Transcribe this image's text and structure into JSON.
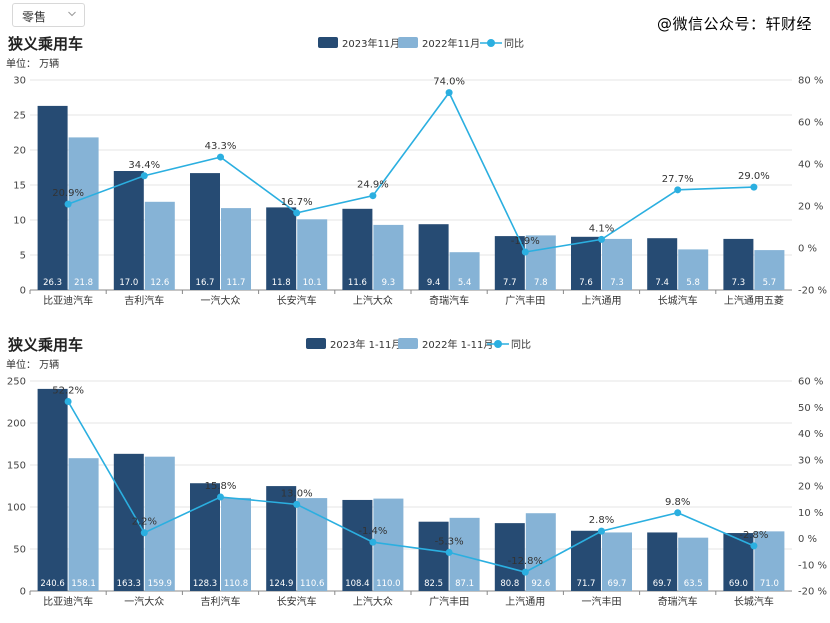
{
  "dropdown": {
    "value": "零售"
  },
  "watermark": "@微信公众号：轩财经",
  "colors": {
    "current": "#264b73",
    "previous": "#86b3d6",
    "yoy": "#2bafe0"
  },
  "chart_data": [
    {
      "type": "bar",
      "title": "狭义乘用车",
      "unit_label": "单位：  万辆",
      "legend": [
        "2023年11月",
        "2022年11月",
        "同比"
      ],
      "legend_position": "top-center",
      "categories": [
        "比亚迪汽车",
        "吉利汽车",
        "一汽大众",
        "长安汽车",
        "上汽大众",
        "奇瑞汽车",
        "广汽丰田",
        "上汽通用",
        "长城汽车",
        "上汽通用五菱"
      ],
      "series": [
        {
          "name": "2023年11月",
          "values": [
            26.3,
            17.0,
            16.7,
            11.8,
            11.6,
            9.4,
            7.7,
            7.6,
            7.4,
            7.3
          ]
        },
        {
          "name": "2022年11月",
          "values": [
            21.8,
            12.6,
            11.7,
            10.1,
            9.3,
            5.4,
            7.8,
            7.3,
            5.8,
            5.7
          ]
        }
      ],
      "line": {
        "name": "同比",
        "values": [
          20.9,
          34.4,
          43.3,
          16.7,
          24.9,
          74.0,
          -1.9,
          4.1,
          27.7,
          29.0
        ],
        "labels": [
          "20.9%",
          "34.4%",
          "43.3%",
          "16.7%",
          "24.9%",
          "74.0%",
          "-1.9%",
          "4.1%",
          "27.7%",
          "29.0%"
        ]
      },
      "ylim": [
        0,
        30
      ],
      "yticks": [
        0,
        5,
        10,
        15,
        20,
        25,
        30
      ],
      "y2lim": [
        -20,
        80
      ],
      "y2ticks": [
        -20,
        0,
        20,
        40,
        60,
        80
      ],
      "y2tick_labels": [
        "-20 %",
        "0 %",
        "20 %",
        "40 %",
        "60 %",
        "80 %"
      ]
    },
    {
      "type": "bar",
      "title": "狭义乘用车",
      "unit_label": "单位：  万辆",
      "legend": [
        "2023年 1-11月",
        "2022年 1-11月",
        "同比"
      ],
      "legend_position": "top-center",
      "categories": [
        "比亚迪汽车",
        "一汽大众",
        "吉利汽车",
        "长安汽车",
        "上汽大众",
        "广汽丰田",
        "上汽通用",
        "一汽丰田",
        "奇瑞汽车",
        "长城汽车"
      ],
      "series": [
        {
          "name": "2023年 1-11月",
          "values": [
            240.6,
            163.3,
            128.3,
            124.9,
            108.4,
            82.5,
            80.8,
            71.7,
            69.7,
            69.0
          ]
        },
        {
          "name": "2022年 1-11月",
          "values": [
            158.1,
            159.9,
            110.8,
            110.6,
            110.0,
            87.1,
            92.6,
            69.7,
            63.5,
            71.0
          ]
        }
      ],
      "line": {
        "name": "同比",
        "values": [
          52.2,
          2.2,
          15.8,
          13.0,
          -1.4,
          -5.3,
          -12.8,
          2.8,
          9.8,
          -2.8
        ],
        "labels": [
          "52.2%",
          "2.2%",
          "15.8%",
          "13.0%",
          "-1.4%",
          "-5.3%",
          "-12.8%",
          "2.8%",
          "9.8%",
          "-2.8%"
        ]
      },
      "ylim": [
        0,
        250
      ],
      "yticks": [
        0,
        50,
        100,
        150,
        200,
        250
      ],
      "y2lim": [
        -20,
        60
      ],
      "y2ticks": [
        -20,
        -10,
        0,
        10,
        20,
        30,
        40,
        50,
        60
      ],
      "y2tick_labels": [
        "-20 %",
        "-10 %",
        "0 %",
        "10 %",
        "20 %",
        "30 %",
        "40 %",
        "50 %",
        "60 %"
      ]
    }
  ]
}
